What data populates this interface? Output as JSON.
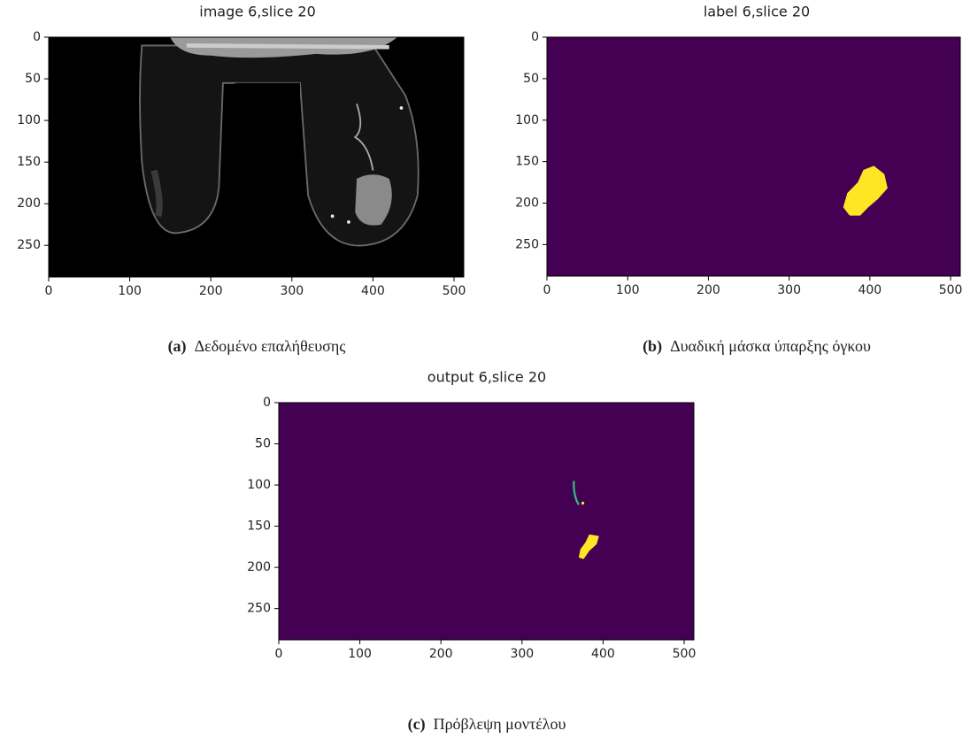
{
  "panels": [
    {
      "title": "image 6,slice 20",
      "xlim": [
        0,
        512
      ],
      "ylim": [
        288,
        0
      ],
      "xticks": [
        0,
        100,
        200,
        300,
        400,
        500
      ],
      "yticks": [
        0,
        50,
        100,
        150,
        200,
        250
      ],
      "caption_tag": "(a)",
      "caption": "Δεδομένο επαλήθευσης"
    },
    {
      "title": "label 6,slice 20",
      "xlim": [
        0,
        512
      ],
      "ylim": [
        288,
        0
      ],
      "xticks": [
        0,
        100,
        200,
        300,
        400,
        500
      ],
      "yticks": [
        0,
        50,
        100,
        150,
        200,
        250
      ],
      "caption_tag": "(b)",
      "caption": "Δυαδική μάσκα ύπαρξης όγκου"
    },
    {
      "title": "output 6,slice 20",
      "xlim": [
        0,
        512
      ],
      "ylim": [
        288,
        0
      ],
      "xticks": [
        0,
        100,
        200,
        300,
        400,
        500
      ],
      "yticks": [
        0,
        50,
        100,
        150,
        200,
        250
      ],
      "caption_tag": "(c)",
      "caption": "Πρόβλεψη μοντέλου"
    }
  ]
}
